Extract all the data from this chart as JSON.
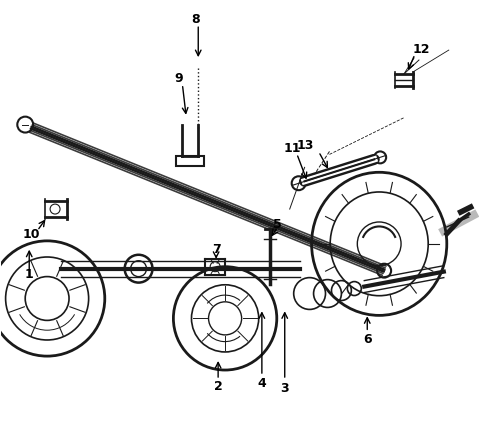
{
  "bg_color": "#ffffff",
  "line_color": "#1a1a1a",
  "label_color": "#000000",
  "fig_width": 4.8,
  "fig_height": 4.39,
  "dpi": 100
}
